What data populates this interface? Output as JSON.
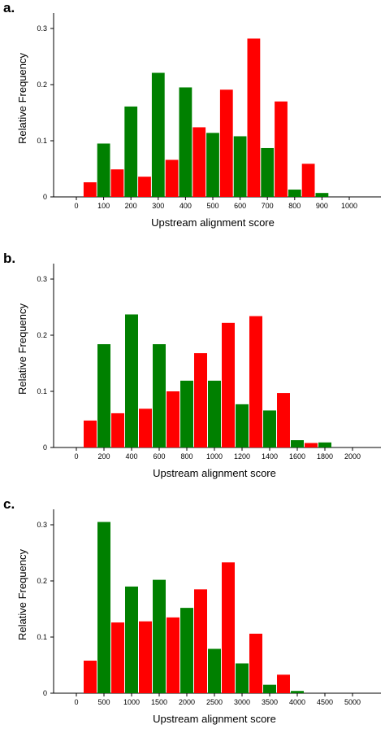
{
  "chart_data": [
    {
      "panel_label": "a.",
      "type": "bar",
      "xlabel": "Upstream alignment score",
      "ylabel": "Relative Frequency",
      "xlim": [
        0,
        1000
      ],
      "ylim": [
        0,
        0.3
      ],
      "xticks": [
        0,
        100,
        200,
        300,
        400,
        500,
        600,
        700,
        800,
        900,
        1000
      ],
      "xtick_labels": [
        "0",
        "100",
        "200",
        "300",
        "400",
        "500",
        "600",
        "700",
        "800",
        "900",
        "1000"
      ],
      "yticks": [
        0,
        0.1,
        0.2,
        0.3
      ],
      "ytick_labels": [
        "0",
        "0.1",
        "0.2",
        "0.3"
      ],
      "grid": false,
      "series": [
        {
          "color": "#ff0000",
          "x": [
            50,
            150,
            250,
            350,
            450,
            550,
            650,
            750,
            850
          ],
          "values": [
            0.026,
            0.049,
            0.036,
            0.066,
            0.124,
            0.191,
            0.282,
            0.17,
            0.059
          ]
        },
        {
          "color": "#008000",
          "x": [
            100,
            200,
            300,
            400,
            500,
            600,
            700,
            800,
            900
          ],
          "values": [
            0.095,
            0.161,
            0.221,
            0.195,
            0.114,
            0.108,
            0.087,
            0.013,
            0.007
          ]
        }
      ]
    },
    {
      "panel_label": "b.",
      "type": "bar",
      "xlabel": "Upstream alignment score",
      "ylabel": "Relative Frequency",
      "xlim": [
        0,
        2000
      ],
      "ylim": [
        0,
        0.3
      ],
      "xticks": [
        0,
        200,
        400,
        600,
        800,
        1000,
        1200,
        1400,
        1600,
        1800,
        2000
      ],
      "xtick_labels": [
        "0",
        "200",
        "400",
        "600",
        "800",
        "1000",
        "1200",
        "1400",
        "1600",
        "1800",
        "2000"
      ],
      "yticks": [
        0,
        0.1,
        0.2,
        0.3
      ],
      "ytick_labels": [
        "0",
        "0.1",
        "0.2",
        "0.3"
      ],
      "grid": false,
      "series": [
        {
          "color": "#ff0000",
          "x": [
            100,
            300,
            500,
            700,
            900,
            1100,
            1300,
            1500,
            1700
          ],
          "values": [
            0.048,
            0.061,
            0.069,
            0.1,
            0.168,
            0.222,
            0.234,
            0.097,
            0.008
          ]
        },
        {
          "color": "#008000",
          "x": [
            200,
            400,
            600,
            800,
            1000,
            1200,
            1400,
            1600,
            1800
          ],
          "values": [
            0.184,
            0.237,
            0.184,
            0.119,
            0.119,
            0.077,
            0.066,
            0.013,
            0.009
          ]
        }
      ]
    },
    {
      "panel_label": "c.",
      "type": "bar",
      "xlabel": "Upstream alignment score",
      "ylabel": "Relative Frequency",
      "xlim": [
        0,
        5000
      ],
      "ylim": [
        0,
        0.3
      ],
      "xticks": [
        0,
        500,
        1000,
        1500,
        2000,
        2500,
        3000,
        3500,
        4000,
        4500,
        5000
      ],
      "xtick_labels": [
        "0",
        "500",
        "1000",
        "1500",
        "2000",
        "2500",
        "3000",
        "3500",
        "4000",
        "4500",
        "5000"
      ],
      "yticks": [
        0,
        0.1,
        0.2,
        0.3
      ],
      "ytick_labels": [
        "0",
        "0.1",
        "0.2",
        "0.3"
      ],
      "grid": false,
      "series": [
        {
          "color": "#ff0000",
          "x": [
            250,
            750,
            1250,
            1750,
            2250,
            2750,
            3250,
            3750
          ],
          "values": [
            0.058,
            0.126,
            0.128,
            0.135,
            0.185,
            0.233,
            0.106,
            0.033
          ]
        },
        {
          "color": "#008000",
          "x": [
            500,
            1000,
            1500,
            2000,
            2500,
            3000,
            3500,
            4000
          ],
          "values": [
            0.305,
            0.19,
            0.202,
            0.152,
            0.079,
            0.053,
            0.015,
            0.004
          ]
        }
      ]
    }
  ]
}
